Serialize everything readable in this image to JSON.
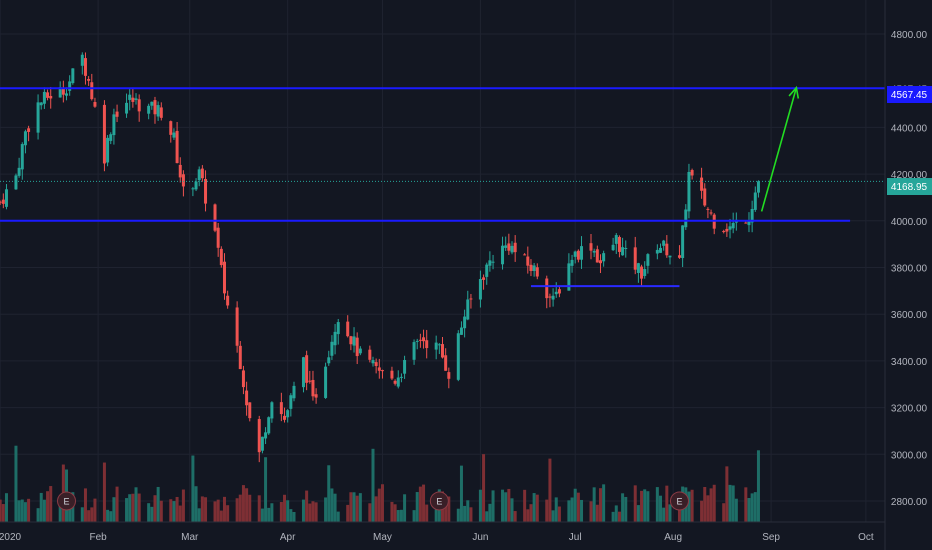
{
  "colors": {
    "background": "#131722",
    "grid": "#1f2330",
    "up": "#26a69a",
    "down": "#ef5350",
    "volume_up": "#1e6e67",
    "volume_down": "#7e2f34",
    "resistance": "#1a1aff",
    "support": "#2a2aff",
    "arrow": "#22dd22",
    "last_price": "#26a69a"
  },
  "chart_data": {
    "type": "candlestick",
    "title": "",
    "xlabel": "",
    "ylabel": "",
    "ylim": [
      2700,
      4950
    ],
    "yticks": [
      2800,
      3000,
      3200,
      3400,
      3600,
      3800,
      4000,
      4200,
      4400,
      4567.45,
      4800
    ],
    "ytick_labels": [
      "2800.00",
      "3000.00",
      "3200.00",
      "3400.00",
      "3600.00",
      "3800.00",
      "4000.00",
      "4200.00",
      "4400.00",
      "4567.45",
      "4800.00"
    ],
    "xticks": [
      "2020",
      "Feb",
      "Mar",
      "Apr",
      "May",
      "Jun",
      "Jul",
      "Aug",
      "Sep",
      "Oct"
    ],
    "xtick_dates": [
      "2020-01-01",
      "2020-02-01",
      "2020-03-01",
      "2020-04-01",
      "2020-05-01",
      "2020-06-01",
      "2020-07-01",
      "2020-08-01",
      "2020-09-01",
      "2020-10-01"
    ],
    "xlim": [
      "2019-12-31",
      "2020-10-08"
    ],
    "grid": true,
    "close_anchors": [
      [
        "2020-01-01",
        4080
      ],
      [
        "2020-01-06",
        4190
      ],
      [
        "2020-01-09",
        4380
      ],
      [
        "2020-01-13",
        4500
      ],
      [
        "2020-01-17",
        4540
      ],
      [
        "2020-01-21",
        4560
      ],
      [
        "2020-01-23",
        4600
      ],
      [
        "2020-01-27",
        4700
      ],
      [
        "2020-01-29",
        4600
      ],
      [
        "2020-01-31",
        4480
      ],
      [
        "2020-02-03",
        4280
      ],
      [
        "2020-02-06",
        4460
      ],
      [
        "2020-02-11",
        4520
      ],
      [
        "2020-02-17",
        4480
      ],
      [
        "2020-02-21",
        4470
      ],
      [
        "2020-02-25",
        4350
      ],
      [
        "2020-02-28",
        4120
      ],
      [
        "2020-03-04",
        4200
      ],
      [
        "2020-03-09",
        3950
      ],
      [
        "2020-03-12",
        3700
      ],
      [
        "2020-03-17",
        3400
      ],
      [
        "2020-03-20",
        3150
      ],
      [
        "2020-03-23",
        3000
      ],
      [
        "2020-03-27",
        3250
      ],
      [
        "2020-03-31",
        3150
      ],
      [
        "2020-04-06",
        3400
      ],
      [
        "2020-04-09",
        3220
      ],
      [
        "2020-04-14",
        3450
      ],
      [
        "2020-04-17",
        3600
      ],
      [
        "2020-04-21",
        3500
      ],
      [
        "2020-04-24",
        3420
      ],
      [
        "2020-04-29",
        3360
      ],
      [
        "2020-05-05",
        3320
      ],
      [
        "2020-05-08",
        3380
      ],
      [
        "2020-05-13",
        3500
      ],
      [
        "2020-05-19",
        3450
      ],
      [
        "2020-05-22",
        3350
      ],
      [
        "2020-05-27",
        3600
      ],
      [
        "2020-06-01",
        3750
      ],
      [
        "2020-06-05",
        3850
      ],
      [
        "2020-06-10",
        3900
      ],
      [
        "2020-06-15",
        3820
      ],
      [
        "2020-06-19",
        3780
      ],
      [
        "2020-06-24",
        3650
      ],
      [
        "2020-06-30",
        3850
      ],
      [
        "2020-07-06",
        3900
      ],
      [
        "2020-07-09",
        3820
      ],
      [
        "2020-07-14",
        3920
      ],
      [
        "2020-07-17",
        3850
      ],
      [
        "2020-07-22",
        3780
      ],
      [
        "2020-07-27",
        3900
      ],
      [
        "2020-07-30",
        3880
      ],
      [
        "2020-08-03",
        3820
      ],
      [
        "2020-08-06",
        4200
      ],
      [
        "2020-08-10",
        4100
      ],
      [
        "2020-08-14",
        4000
      ],
      [
        "2020-08-19",
        3970
      ],
      [
        "2020-08-25",
        4030
      ],
      [
        "2020-08-28",
        4168.95
      ]
    ],
    "resistance_line": 4567.45,
    "breakout_line": {
      "value": 4000,
      "start": "2019-12-31",
      "end": "2020-09-26"
    },
    "support_line": {
      "value": 3720,
      "start": "2020-06-17",
      "end": "2020-08-03"
    },
    "projection_arrow": {
      "from": [
        "2020-08-29",
        4040
      ],
      "to": [
        "2020-09-09",
        4570
      ]
    },
    "last_price": 4168.95,
    "events": [
      {
        "label": "E",
        "date": "2020-01-22"
      },
      {
        "label": "E",
        "date": "2020-05-19"
      },
      {
        "label": "E",
        "date": "2020-08-03"
      }
    ]
  },
  "badges": {
    "resistance": "4567.45",
    "last": "4168.95"
  }
}
